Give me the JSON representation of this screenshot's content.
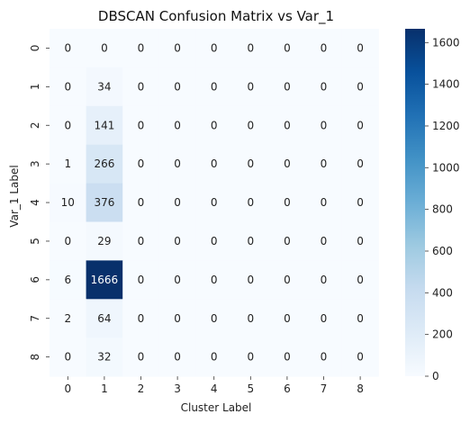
{
  "chart_data": {
    "type": "heatmap",
    "title": "DBSCAN Confusion Matrix vs Var_1",
    "xlabel": "Cluster Label",
    "ylabel": "Var_1 Label",
    "x_categories": [
      "0",
      "1",
      "2",
      "3",
      "4",
      "5",
      "6",
      "7",
      "8"
    ],
    "y_categories": [
      "0",
      "1",
      "2",
      "3",
      "4",
      "5",
      "6",
      "7",
      "8"
    ],
    "values": [
      [
        0,
        0,
        0,
        0,
        0,
        0,
        0,
        0,
        0
      ],
      [
        0,
        34,
        0,
        0,
        0,
        0,
        0,
        0,
        0
      ],
      [
        0,
        141,
        0,
        0,
        0,
        0,
        0,
        0,
        0
      ],
      [
        1,
        266,
        0,
        0,
        0,
        0,
        0,
        0,
        0
      ],
      [
        10,
        376,
        0,
        0,
        0,
        0,
        0,
        0,
        0
      ],
      [
        0,
        29,
        0,
        0,
        0,
        0,
        0,
        0,
        0
      ],
      [
        6,
        1666,
        0,
        0,
        0,
        0,
        0,
        0,
        0
      ],
      [
        2,
        64,
        0,
        0,
        0,
        0,
        0,
        0,
        0
      ],
      [
        0,
        32,
        0,
        0,
        0,
        0,
        0,
        0,
        0
      ]
    ],
    "colormap": "Blues",
    "vmin": 0,
    "vmax": 1666,
    "colorbar_ticks": [
      0,
      200,
      400,
      600,
      800,
      1000,
      1200,
      1400,
      1600
    ],
    "colors": {
      "low": "#f7fbff",
      "high": "#08306b"
    }
  }
}
